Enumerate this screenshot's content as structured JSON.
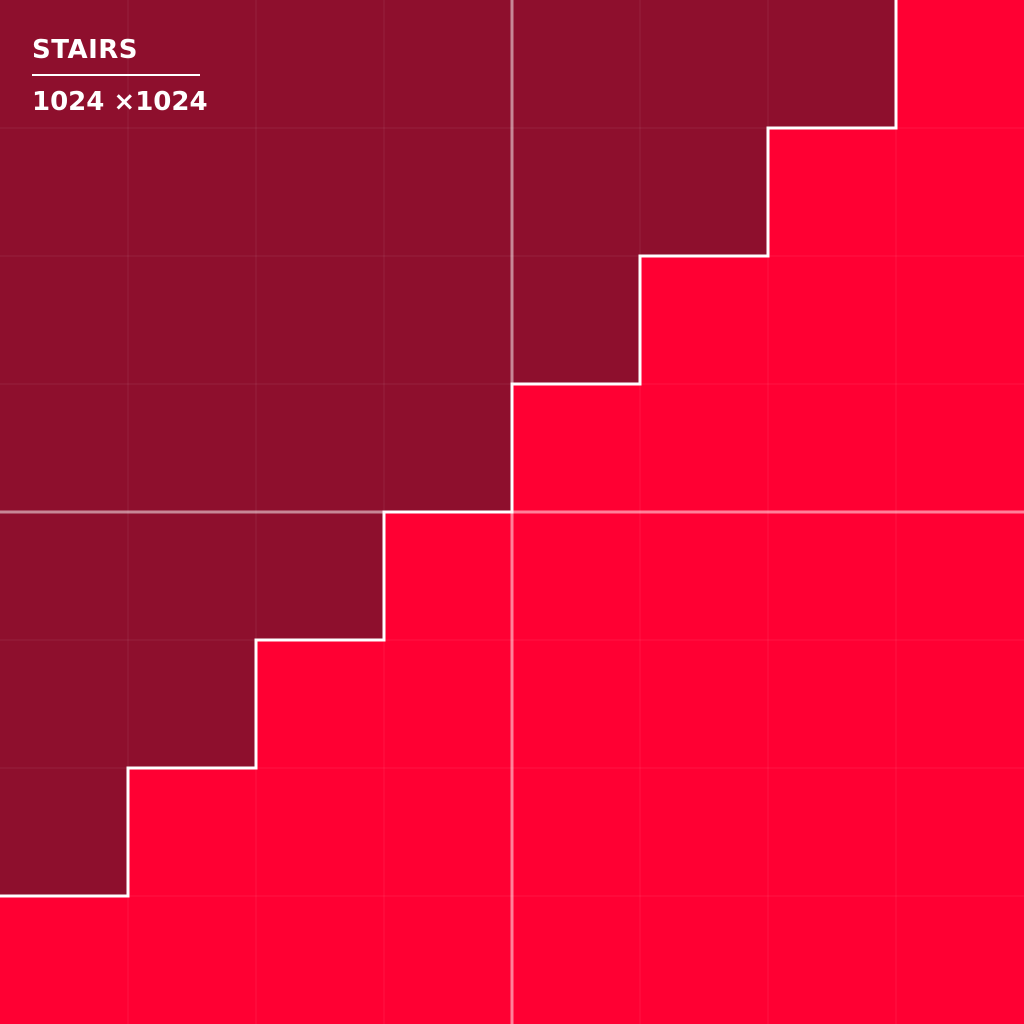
{
  "title": "STAIRS",
  "dimensions": "1024 ×1024",
  "colors": {
    "dark": "#8E0F2D",
    "bright": "#FF0033",
    "stair_line": "#FFFFFF"
  },
  "grid": {
    "cells": 8
  }
}
